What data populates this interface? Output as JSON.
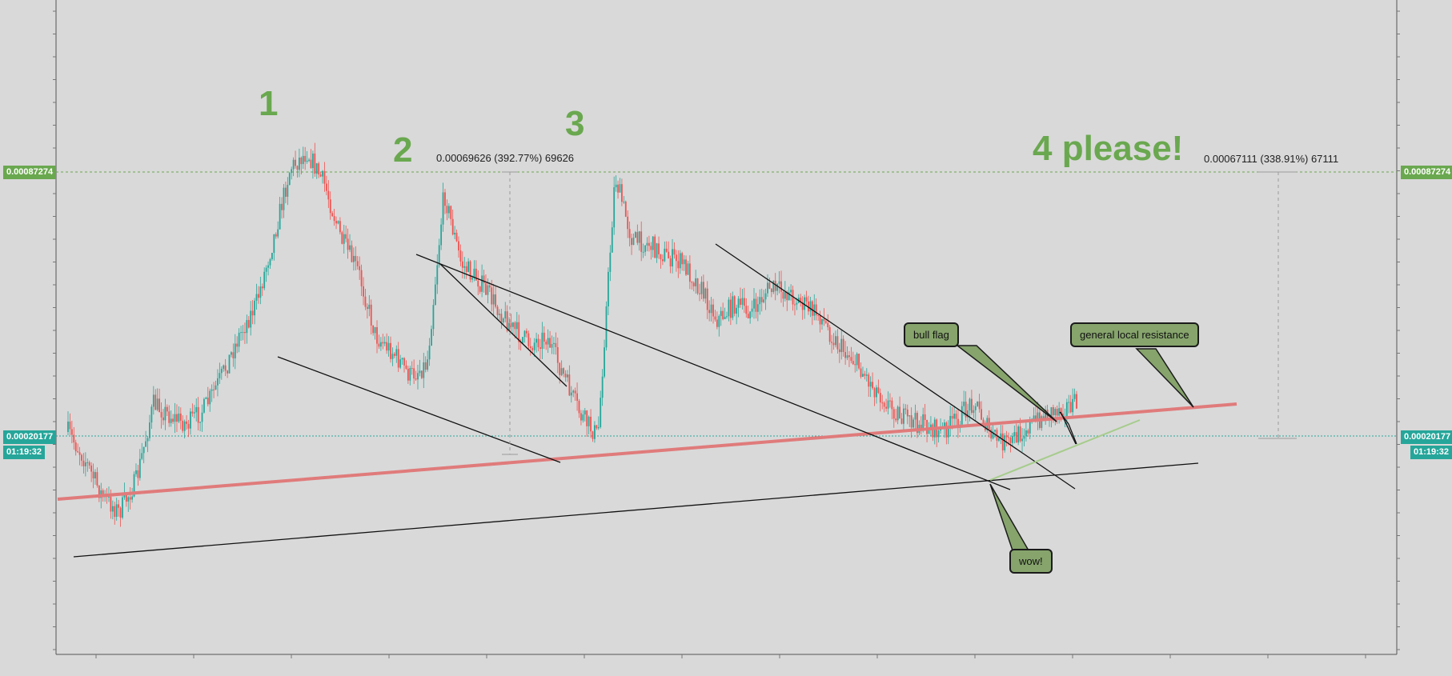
{
  "chart_data": {
    "type": "line",
    "title": "",
    "xlabel": "",
    "ylabel": "",
    "x_tick_labels": [],
    "price_axis": {
      "tick_labels": [
        "0.00087274",
        "0.00020177"
      ],
      "countdown": "01:19:32",
      "tag_colors": {
        "resistance_level": "#6aa84f",
        "current_price": "#26a69a"
      }
    },
    "series": [
      {
        "values": [
          0.00015,
          0.00011,
          6e-05,
          5e-05,
          8e-05,
          0.00018,
          0.00016,
          0.00015,
          0.00018,
          0.00023,
          0.00025,
          0.00028,
          0.0004,
          0.0006,
          0.00085,
          0.00078,
          0.00062,
          0.0005,
          0.00036,
          0.00034,
          0.0003,
          0.00032,
          0.00085,
          0.00055,
          0.00049,
          0.00042,
          0.00038,
          0.00034,
          0.00036,
          0.0003,
          0.0002,
          0.00022,
          0.0008,
          0.0006,
          0.00057,
          0.00053,
          0.0005,
          0.0004,
          0.00035,
          0.00038,
          0.00036,
          0.00044,
          0.00042,
          0.0004,
          0.00038,
          0.00035,
          0.00028,
          0.00025,
          0.00022,
          0.00018,
          0.00018,
          0.00017,
          0.00018,
          0.0002,
          0.00015,
          0.00014,
          0.00017,
          0.00018,
          0.0002,
          0.00022
        ]
      }
    ],
    "annotations": {
      "wave_labels": [
        "1",
        "2",
        "3",
        "4 please!"
      ],
      "measurements": [
        "0.00069626 (392.77%) 69626",
        "0.00067111 (338.91%) 67111"
      ],
      "callouts": [
        "bull flag",
        "general local resistance",
        "wow!"
      ]
    },
    "colors": {
      "background": "#d9d9d9",
      "bull_candle": "#26a69a",
      "bear_candle": "#ef5350",
      "support_line": "#e07b7b",
      "callout_fill": "#86a46c",
      "wave_label": "#6aa84f",
      "flag_line": "#a6cc8c"
    },
    "grid": false
  }
}
